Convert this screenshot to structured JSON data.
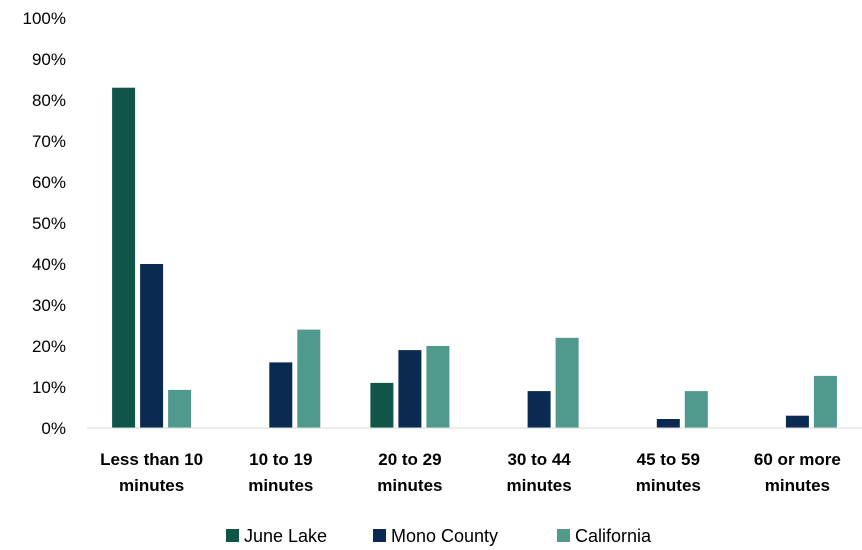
{
  "chart_data": {
    "type": "bar",
    "title": "",
    "xlabel": "",
    "ylabel": "",
    "ylim": [
      0,
      100
    ],
    "y_ticks": [
      "0%",
      "10%",
      "20%",
      "30%",
      "40%",
      "50%",
      "60%",
      "70%",
      "80%",
      "90%",
      "100%"
    ],
    "y_tick_values": [
      0,
      10,
      20,
      30,
      40,
      50,
      60,
      70,
      80,
      90,
      100
    ],
    "grid": false,
    "legend_position": "bottom",
    "categories": [
      [
        "Less than 10",
        "minutes"
      ],
      [
        "10 to 19",
        "minutes"
      ],
      [
        "20 to 29",
        "minutes"
      ],
      [
        "30 to 44",
        "minutes"
      ],
      [
        "45 to 59",
        "minutes"
      ],
      [
        "60 or more",
        "minutes"
      ]
    ],
    "series": [
      {
        "name": "June Lake",
        "color": "#0f5649",
        "values": [
          83,
          0,
          11,
          0,
          0,
          0
        ]
      },
      {
        "name": "Mono County",
        "color": "#0b2a52",
        "values": [
          40,
          16,
          19,
          9,
          2.2,
          3
        ]
      },
      {
        "name": "California",
        "color": "#4f9a8d",
        "values": [
          9.3,
          24,
          20,
          22,
          9,
          12.7
        ]
      }
    ]
  }
}
